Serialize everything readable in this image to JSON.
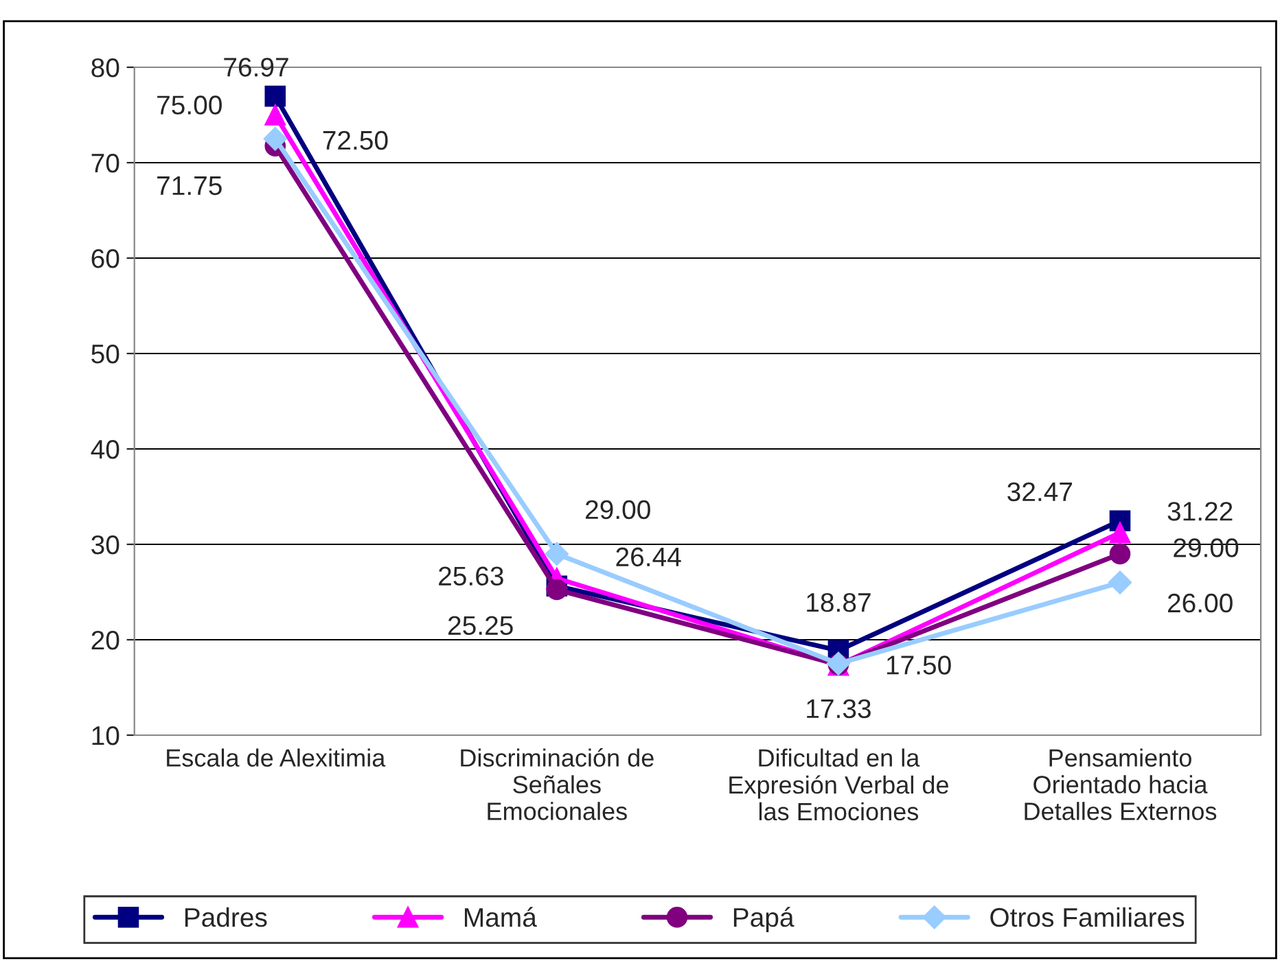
{
  "chart_data": {
    "type": "line",
    "categories": [
      "Escala de Alexitimia",
      "Discriminación de\nSeñales\nEmocionales",
      "Dificultad en la\nExpresión Verbal de\nlas Emociones",
      "Pensamiento\nOrientado hacia\nDetalles Externos"
    ],
    "series": [
      {
        "name": "Padres",
        "color": "#000080",
        "marker": "square",
        "values": [
          76.97,
          25.63,
          18.87,
          32.47
        ],
        "value_labels": [
          "76.97",
          "25.63",
          "18.87",
          "32.47"
        ]
      },
      {
        "name": "Mamá",
        "color": "#ff00ff",
        "marker": "triangle",
        "values": [
          75.0,
          26.44,
          17.33,
          31.22
        ],
        "value_labels": [
          "75.00",
          "26.44",
          "17.33",
          "31.22"
        ]
      },
      {
        "name": "Papá",
        "color": "#800080",
        "marker": "circle",
        "values": [
          71.75,
          25.25,
          17.4,
          29.0
        ],
        "value_labels": [
          "71.75",
          "25.25",
          null,
          "29.00"
        ]
      },
      {
        "name": "Otros Familiares",
        "color": "#99ccff",
        "marker": "diamond",
        "values": [
          72.5,
          29.0,
          17.5,
          26.0
        ],
        "value_labels": [
          "72.50",
          "29.00",
          "17.50",
          "26.00"
        ]
      }
    ],
    "ylim": [
      10,
      80
    ],
    "yticks": [
      10,
      20,
      30,
      40,
      50,
      60,
      70,
      80
    ],
    "grid": "y",
    "legend": "bottom"
  }
}
